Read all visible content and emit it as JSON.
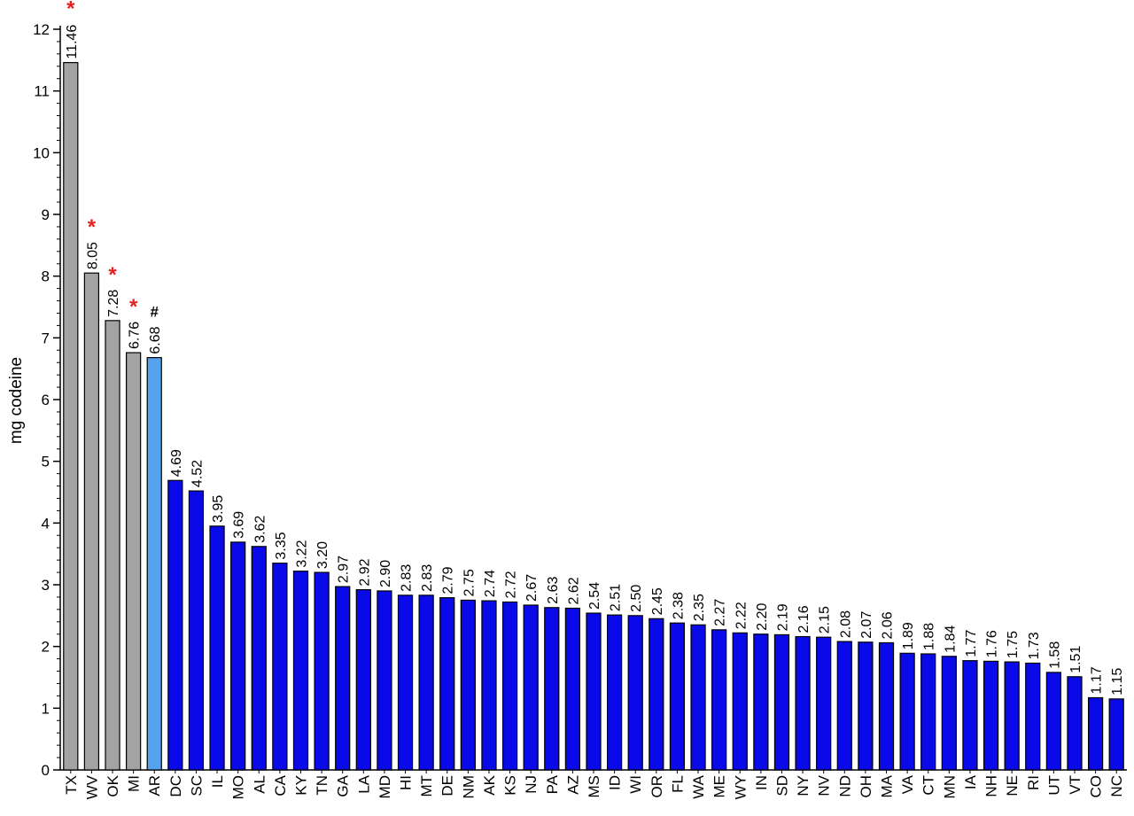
{
  "chart_data": {
    "type": "bar",
    "ylabel": "mg codeine",
    "ylim": [
      0,
      12
    ],
    "y_ticks": [
      "0",
      "1",
      "2",
      "3",
      "4",
      "5",
      "6",
      "7",
      "8",
      "9",
      "10",
      "11",
      "12"
    ],
    "grid": false,
    "categories": [
      "TX",
      "WV",
      "OK",
      "MI",
      "AR",
      "DC",
      "SC",
      "IL",
      "MO",
      "AL",
      "CA",
      "KY",
      "TN",
      "GA",
      "LA",
      "MD",
      "HI",
      "MT",
      "DE",
      "NM",
      "AK",
      "KS",
      "NJ",
      "PA",
      "AZ",
      "MS",
      "ID",
      "WI",
      "OR",
      "FL",
      "WA",
      "ME",
      "WY",
      "IN",
      "SD",
      "NY",
      "NV",
      "ND",
      "OH",
      "MA",
      "VA",
      "CT",
      "MN",
      "IA",
      "NH",
      "NE",
      "RI",
      "UT",
      "VT",
      "CO",
      "NC"
    ],
    "values": [
      11.46,
      8.05,
      7.28,
      6.76,
      6.68,
      4.69,
      4.52,
      3.95,
      3.69,
      3.62,
      3.35,
      3.22,
      3.2,
      2.97,
      2.92,
      2.9,
      2.83,
      2.83,
      2.79,
      2.75,
      2.74,
      2.72,
      2.67,
      2.63,
      2.62,
      2.54,
      2.51,
      2.5,
      2.45,
      2.38,
      2.35,
      2.27,
      2.22,
      2.2,
      2.19,
      2.16,
      2.15,
      2.08,
      2.07,
      2.06,
      1.89,
      1.88,
      1.84,
      1.77,
      1.76,
      1.75,
      1.73,
      1.58,
      1.51,
      1.17,
      1.15
    ],
    "value_labels": [
      "11.46",
      "8.05",
      "7.28",
      "6.76",
      "6.68",
      "4.69",
      "4.52",
      "3.95",
      "3.69",
      "3.62",
      "3.35",
      "3.22",
      "3.20",
      "2.97",
      "2.92",
      "2.90",
      "2.83",
      "2.83",
      "2.79",
      "2.75",
      "2.74",
      "2.72",
      "2.67",
      "2.63",
      "2.62",
      "2.54",
      "2.51",
      "2.50",
      "2.45",
      "2.38",
      "2.35",
      "2.27",
      "2.22",
      "2.20",
      "2.19",
      "2.16",
      "2.15",
      "2.08",
      "2.07",
      "2.06",
      "1.89",
      "1.88",
      "1.84",
      "1.77",
      "1.76",
      "1.75",
      "1.73",
      "1.58",
      "1.51",
      "1.17",
      "1.15"
    ],
    "bar_colors": [
      "#a3a3a3",
      "#a3a3a3",
      "#a3a3a3",
      "#a3a3a3",
      "#55a2ee",
      "#0a0ae8",
      "#0a0ae8",
      "#0a0ae8",
      "#0a0ae8",
      "#0a0ae8",
      "#0a0ae8",
      "#0a0ae8",
      "#0a0ae8",
      "#0a0ae8",
      "#0a0ae8",
      "#0a0ae8",
      "#0a0ae8",
      "#0a0ae8",
      "#0a0ae8",
      "#0a0ae8",
      "#0a0ae8",
      "#0a0ae8",
      "#0a0ae8",
      "#0a0ae8",
      "#0a0ae8",
      "#0a0ae8",
      "#0a0ae8",
      "#0a0ae8",
      "#0a0ae8",
      "#0a0ae8",
      "#0a0ae8",
      "#0a0ae8",
      "#0a0ae8",
      "#0a0ae8",
      "#0a0ae8",
      "#0a0ae8",
      "#0a0ae8",
      "#0a0ae8",
      "#0a0ae8",
      "#0a0ae8",
      "#0a0ae8",
      "#0a0ae8",
      "#0a0ae8",
      "#0a0ae8",
      "#0a0ae8",
      "#0a0ae8",
      "#0a0ae8",
      "#0a0ae8",
      "#0a0ae8",
      "#0a0ae8",
      "#0a0ae8"
    ],
    "markers": [
      {
        "index": 0,
        "symbol": "*",
        "color": "#e52222"
      },
      {
        "index": 1,
        "symbol": "*",
        "color": "#e52222"
      },
      {
        "index": 2,
        "symbol": "*",
        "color": "#e52222"
      },
      {
        "index": 3,
        "symbol": "*",
        "color": "#e52222"
      },
      {
        "index": 4,
        "symbol": "#",
        "color": "#000000"
      }
    ]
  }
}
